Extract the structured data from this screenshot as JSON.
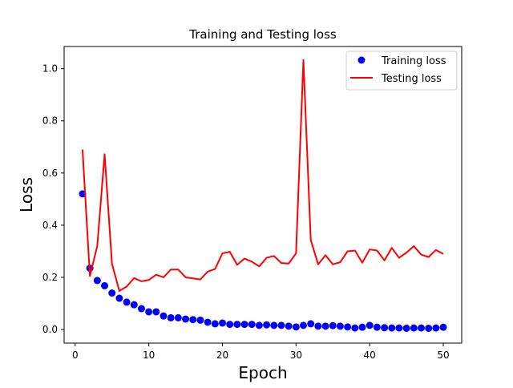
{
  "chart_data": {
    "type": "line",
    "title": "Training and Testing loss",
    "xlabel": "Epoch",
    "ylabel": "Loss",
    "xlim": [
      -1.5,
      52.5
    ],
    "ylim": [
      -0.052,
      1.085
    ],
    "xticks": [
      0,
      10,
      20,
      30,
      40,
      50
    ],
    "yticks": [
      0.0,
      0.2,
      0.4,
      0.6,
      0.8,
      1.0
    ],
    "xtick_labels": [
      "0",
      "10",
      "20",
      "30",
      "40",
      "50"
    ],
    "ytick_labels": [
      "0.0",
      "0.2",
      "0.4",
      "0.6",
      "0.8",
      "1.0"
    ],
    "grid": false,
    "legend_position": "top-right",
    "x": [
      1,
      2,
      3,
      4,
      5,
      6,
      7,
      8,
      9,
      10,
      11,
      12,
      13,
      14,
      15,
      16,
      17,
      18,
      19,
      20,
      21,
      22,
      23,
      24,
      25,
      26,
      27,
      28,
      29,
      30,
      31,
      32,
      33,
      34,
      35,
      36,
      37,
      38,
      39,
      40,
      41,
      42,
      43,
      44,
      45,
      46,
      47,
      48,
      49,
      50
    ],
    "series": [
      {
        "name": "Training loss",
        "style": "markers",
        "color": "#0000ff",
        "values": [
          0.52,
          0.235,
          0.188,
          0.168,
          0.14,
          0.12,
          0.105,
          0.095,
          0.08,
          0.068,
          0.068,
          0.052,
          0.045,
          0.045,
          0.04,
          0.038,
          0.036,
          0.028,
          0.022,
          0.025,
          0.02,
          0.02,
          0.02,
          0.02,
          0.016,
          0.018,
          0.016,
          0.016,
          0.013,
          0.01,
          0.016,
          0.022,
          0.013,
          0.013,
          0.015,
          0.013,
          0.01,
          0.006,
          0.009,
          0.016,
          0.009,
          0.007,
          0.006,
          0.006,
          0.005,
          0.006,
          0.006,
          0.005,
          0.006,
          0.009
        ]
      },
      {
        "name": "Testing loss",
        "style": "line",
        "color": "#ff0000",
        "values": [
          0.69,
          0.205,
          0.32,
          0.672,
          0.252,
          0.148,
          0.165,
          0.197,
          0.185,
          0.19,
          0.21,
          0.2,
          0.23,
          0.23,
          0.2,
          0.196,
          0.192,
          0.222,
          0.232,
          0.292,
          0.298,
          0.248,
          0.272,
          0.26,
          0.242,
          0.275,
          0.282,
          0.255,
          0.253,
          0.292,
          1.033,
          0.343,
          0.25,
          0.285,
          0.25,
          0.258,
          0.3,
          0.303,
          0.256,
          0.307,
          0.303,
          0.265,
          0.313,
          0.275,
          0.295,
          0.32,
          0.287,
          0.278,
          0.305,
          0.29
        ]
      }
    ]
  }
}
